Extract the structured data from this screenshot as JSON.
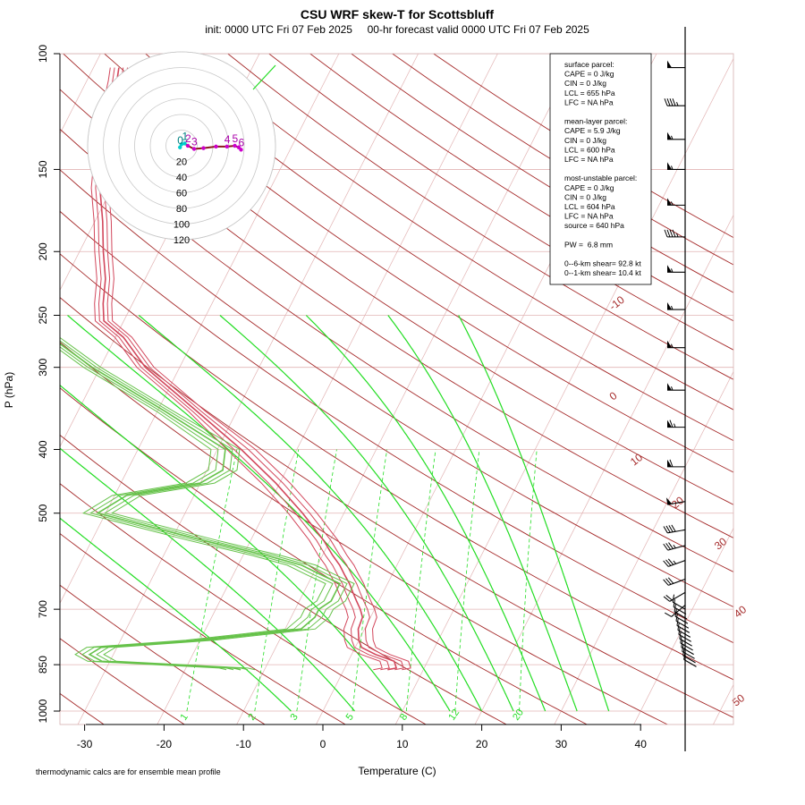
{
  "title": "CSU WRF skew-T for Scottsbluff",
  "subtitle": "init: 0000 UTC Fri 07 Feb 2025     00-hr forecast valid 0000 UTC Fri 07 Feb 2025",
  "footnote": "thermodynamic calcs are for ensemble mean profile",
  "colors": {
    "isobar": "#e2b4b4",
    "isotherm": "#e2b4b4",
    "dry_adiabat": "#a52a2a",
    "moist_adiabat": "#22dd22",
    "mixing_ratio": "#22dd22",
    "temperature": "#d2475c",
    "dewpoint": "#66c24a",
    "hodo_line": "#8b1a1a",
    "hodo_pt": "#cc00cc"
  },
  "info_box": [
    "surface parcel:",
    "CAPE = 0 J/kg",
    "CIN = 0 J/kg",
    "LCL = 655 hPa",
    "LFC = NA hPa",
    "",
    "mean-layer parcel:",
    "CAPE = 5.9 J/kg",
    "CIN = 0 J/kg",
    "LCL = 600 hPa",
    "LFC = NA hPa",
    "",
    "most-unstable parcel:",
    "CAPE = 0 J/kg",
    "CIN = 0 J/kg",
    "LCL = 604 hPa",
    "LFC = NA hPa",
    "source = 640 hPa",
    "",
    "PW =  6.8 mm",
    "",
    "0--6-km shear= 92.8 kt",
    "0--1-km shear= 10.4 kt"
  ],
  "chart_data": {
    "type": "line",
    "kind": "skew-T log-P",
    "title": "CSU WRF skew-T for Scottsbluff",
    "xlabel": "Temperature (C)",
    "ylabel": "P (hPa)",
    "xlim": [
      -33,
      44
    ],
    "ylim": [
      1050,
      100
    ],
    "y_scale": "log",
    "skew_degC_per_decade": 42,
    "x_ticks": [
      -30,
      -20,
      -10,
      0,
      10,
      20,
      30,
      40
    ],
    "y_ticks": [
      100,
      150,
      200,
      250,
      300,
      400,
      500,
      700,
      850,
      1000
    ],
    "dry_adiabat_labels": [
      "-10",
      "0",
      "10",
      "20",
      "30",
      "40",
      "50"
    ],
    "mixing_ratio_labels": [
      "1",
      "2",
      "3",
      "5",
      "8",
      "12",
      "20"
    ],
    "series": [
      {
        "name": "temperature",
        "ensemble_members": 5,
        "p": [
          865,
          860,
          840,
          820,
          800,
          780,
          750,
          720,
          700,
          680,
          660,
          640,
          620,
          600,
          580,
          550,
          500,
          450,
          400,
          350,
          300,
          270,
          255,
          240,
          220,
          200,
          180,
          160,
          140,
          120,
          110,
          105
        ],
        "t": [
          5.5,
          6.5,
          5.8,
          3.0,
          0.8,
          0.0,
          -0.8,
          -1.0,
          -1.8,
          -2.8,
          -3.8,
          -4.8,
          -6.0,
          -7.2,
          -8.7,
          -10.8,
          -15.2,
          -20.5,
          -27.0,
          -35.0,
          -44.3,
          -49.0,
          -52.5,
          -53.7,
          -55.0,
          -57.0,
          -59.0,
          -61.5,
          -63.5,
          -65.3,
          -66.2,
          -66.8
        ]
      },
      {
        "name": "dewpoint",
        "ensemble_members": 5,
        "p": [
          865,
          860,
          840,
          820,
          800,
          780,
          750,
          720,
          700,
          680,
          660,
          640,
          620,
          600,
          580,
          550,
          500,
          470,
          450,
          430,
          400,
          350,
          300,
          255,
          200,
          180,
          165
        ],
        "t": [
          -13,
          -14,
          -31,
          -33,
          -32,
          -20,
          -8,
          -7,
          -7,
          -6,
          -6,
          -6,
          -9,
          -12,
          -17,
          -26,
          -41,
          -38.5,
          -30,
          -28,
          -29,
          -39,
          -51,
          -62,
          -71,
          -75,
          -77
        ]
      }
    ],
    "wind_barbs": {
      "p": [
        105,
        120,
        135,
        150,
        170,
        190,
        215,
        245,
        280,
        325,
        370,
        425,
        480,
        530,
        560,
        590,
        630,
        660,
        690
      ],
      "speed_kt": [
        50,
        45,
        55,
        55,
        55,
        45,
        55,
        55,
        55,
        55,
        65,
        60,
        50,
        40,
        35,
        35,
        30,
        20,
        10
      ],
      "direction_deg": [
        270,
        270,
        270,
        270,
        270,
        270,
        270,
        270,
        270,
        270,
        270,
        270,
        260,
        260,
        255,
        250,
        250,
        240,
        230
      ]
    },
    "hodograph": {
      "ring_labels": [
        "20",
        "40",
        "60",
        "80",
        "100",
        "120"
      ],
      "height_labels": [
        "0",
        "1",
        "2",
        "3",
        "4",
        "5",
        "6"
      ],
      "u_kt": [
        -2,
        0,
        4,
        8,
        16,
        28,
        44,
        58,
        68,
        73,
        76
      ],
      "v_kt": [
        -2,
        2,
        3,
        0,
        -4,
        -3,
        -1,
        -1,
        0,
        -2,
        -5
      ]
    }
  }
}
